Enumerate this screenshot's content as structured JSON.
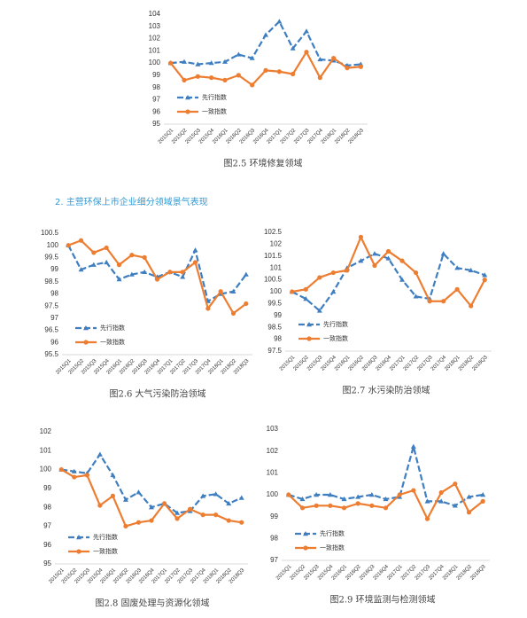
{
  "heading": "2. 主营环保上市企业细分领域景气表现",
  "chart_data": [
    {
      "type": "line",
      "caption": "图2.5 环境修复领域",
      "legend": "lower left",
      "categories": [
        "2015Q1",
        "2015Q2",
        "2015Q3",
        "2015Q4",
        "2016Q1",
        "2016Q2",
        "2016Q3",
        "2016Q4",
        "2017Q1",
        "2017Q2",
        "2017Q3",
        "2017Q4",
        "2018Q1",
        "2018Q2",
        "2018Q3"
      ],
      "ylim": [
        95,
        104
      ],
      "yticks": [
        95,
        96,
        97,
        98,
        99,
        100,
        101,
        102,
        103,
        104
      ],
      "series": [
        {
          "name": "先行指数",
          "color": "#3f7fc1",
          "values": [
            100,
            100.1,
            99.9,
            100,
            100.1,
            100.7,
            100.4,
            102.3,
            103.4,
            101.2,
            102.6,
            100.3,
            100.2,
            99.8,
            99.9
          ]
        },
        {
          "name": "一致指数",
          "color": "#ed7d31",
          "values": [
            100,
            98.6,
            98.9,
            98.8,
            98.6,
            99,
            98.2,
            99.4,
            99.3,
            99.1,
            100.9,
            98.8,
            100.4,
            99.6,
            99.7
          ]
        }
      ]
    },
    {
      "type": "line",
      "caption": "图2.6 大气污染防治领域",
      "legend": "lower left",
      "categories": [
        "2015Q1",
        "2015Q2",
        "2015Q3",
        "2015Q4",
        "2016Q1",
        "2016Q2",
        "2016Q3",
        "2016Q4",
        "2017Q1",
        "2017Q2",
        "2017Q3",
        "2017Q4",
        "2018Q1",
        "2018Q2",
        "2018Q3"
      ],
      "ylim": [
        95.5,
        100.5
      ],
      "yticks": [
        95.5,
        96,
        96.5,
        97,
        97.5,
        98,
        98.5,
        99,
        99.5,
        100,
        100.5
      ],
      "series": [
        {
          "name": "先行指数",
          "color": "#3f7fc1",
          "values": [
            100,
            99,
            99.2,
            99.3,
            98.6,
            98.8,
            98.9,
            98.7,
            98.9,
            98.7,
            99.8,
            97.7,
            98,
            98.1,
            98.8
          ]
        },
        {
          "name": "一致指数",
          "color": "#ed7d31",
          "values": [
            100,
            100.2,
            99.7,
            99.9,
            99.2,
            99.6,
            99.5,
            98.6,
            98.9,
            98.9,
            99.3,
            97.4,
            98.1,
            97.2,
            97.6
          ]
        }
      ]
    },
    {
      "type": "line",
      "caption": "图2.7 水污染防治领域",
      "legend": "lower left",
      "categories": [
        "2015Q1",
        "2015Q2",
        "2015Q3",
        "2015Q4",
        "2016Q1",
        "2016Q2",
        "2016Q3",
        "2016Q4",
        "2017Q1",
        "2017Q2",
        "2017Q3",
        "2017Q4",
        "2018Q1",
        "2018Q2",
        "2018Q3"
      ],
      "ylim": [
        97.5,
        102.5
      ],
      "yticks": [
        97.5,
        98,
        98.5,
        99,
        99.5,
        100,
        100.5,
        101,
        101.5,
        102,
        102.5
      ],
      "series": [
        {
          "name": "先行指数",
          "color": "#3f7fc1",
          "values": [
            100,
            99.7,
            99.2,
            100,
            101,
            101.3,
            101.6,
            101.4,
            100.5,
            99.8,
            99.7,
            101.6,
            101,
            100.9,
            100.7
          ]
        },
        {
          "name": "一致指数",
          "color": "#ed7d31",
          "values": [
            100,
            100.1,
            100.6,
            100.8,
            100.9,
            102.3,
            101.1,
            101.7,
            101.3,
            100.8,
            99.6,
            99.6,
            100.1,
            99.4,
            100.5
          ]
        }
      ]
    },
    {
      "type": "line",
      "caption": "图2.8 固废处理与资源化领域",
      "legend": "lower left",
      "categories": [
        "2015Q1",
        "2015Q2",
        "2015Q3",
        "2015Q4",
        "2016Q1",
        "2016Q2",
        "2016Q3",
        "2016Q4",
        "2017Q1",
        "2017Q2",
        "2017Q3",
        "2017Q4",
        "2018Q1",
        "2018Q2",
        "2018Q3"
      ],
      "ylim": [
        95,
        102
      ],
      "yticks": [
        95,
        96,
        97,
        98,
        99,
        100,
        101,
        102
      ],
      "series": [
        {
          "name": "先行指数",
          "color": "#3f7fc1",
          "values": [
            100,
            99.9,
            99.8,
            100.8,
            99.7,
            98.4,
            98.8,
            98,
            98.2,
            97.7,
            97.8,
            98.6,
            98.7,
            98.2,
            98.5
          ]
        },
        {
          "name": "一致指数",
          "color": "#ed7d31",
          "values": [
            100,
            99.6,
            99.7,
            98.1,
            98.6,
            97,
            97.2,
            97.3,
            98.2,
            97.4,
            97.9,
            97.6,
            97.6,
            97.3,
            97.2
          ]
        }
      ]
    },
    {
      "type": "line",
      "caption": "图2.9 环境监测与检测领域",
      "legend": "lower left",
      "categories": [
        "2015Q1",
        "2015Q2",
        "2015Q3",
        "2015Q4",
        "2016Q1",
        "2016Q2",
        "2016Q3",
        "2016Q4",
        "2017Q1",
        "2017Q2",
        "2017Q3",
        "2017Q4",
        "2018Q1",
        "2018Q2",
        "2018Q3"
      ],
      "ylim": [
        97,
        103
      ],
      "yticks": [
        97,
        98,
        99,
        100,
        101,
        102,
        103
      ],
      "series": [
        {
          "name": "先行指数",
          "color": "#3f7fc1",
          "values": [
            100,
            99.8,
            100,
            100,
            99.8,
            99.9,
            100,
            99.8,
            99.9,
            102.2,
            99.7,
            99.7,
            99.5,
            99.9,
            100
          ]
        },
        {
          "name": "一致指数",
          "color": "#ed7d31",
          "values": [
            100,
            99.4,
            99.5,
            99.5,
            99.4,
            99.6,
            99.5,
            99.4,
            100,
            100.2,
            98.9,
            100.1,
            100.5,
            99.2,
            99.7
          ]
        }
      ]
    }
  ]
}
